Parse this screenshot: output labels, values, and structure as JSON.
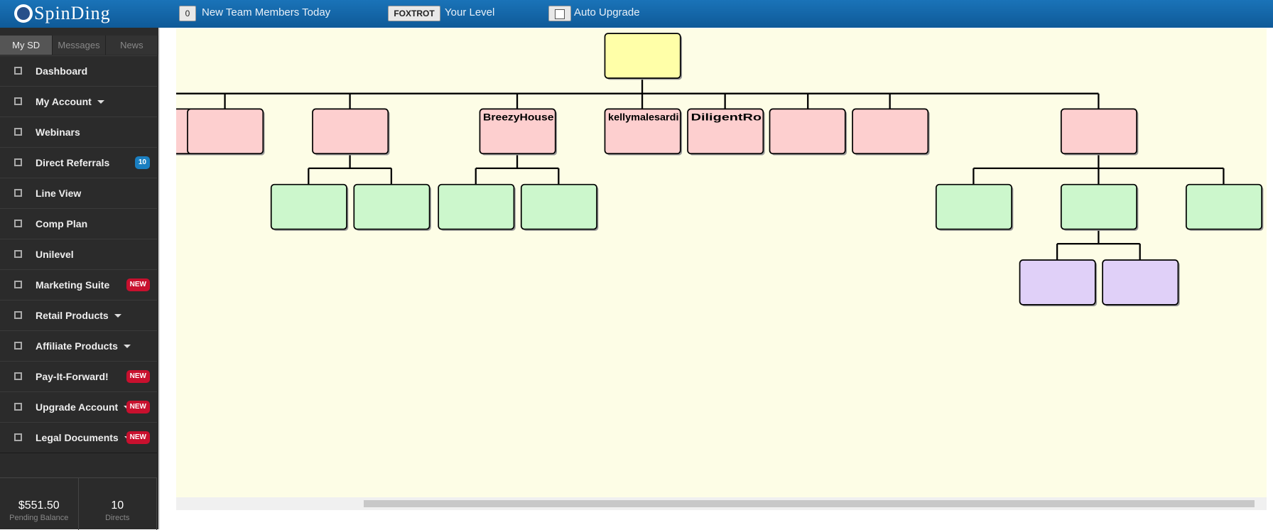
{
  "header": {
    "logo": "SpinDing",
    "new_members_count": "0",
    "new_members_label": "New Team Members Today",
    "level": "FOXTROT",
    "level_label": "Your Level",
    "auto_upgrade_label": "Auto Upgrade"
  },
  "tabs": [
    "My SD",
    "Messages",
    "News"
  ],
  "menu": [
    {
      "label": "Dashboard"
    },
    {
      "label": "My Account",
      "dropdown": true
    },
    {
      "label": "Webinars"
    },
    {
      "label": "Direct Referrals",
      "badge": "10",
      "badge_color": "#1a7fc1"
    },
    {
      "label": "Line View"
    },
    {
      "label": "Comp Plan"
    },
    {
      "label": "Unilevel"
    },
    {
      "label": "Marketing Suite",
      "badge": "NEW",
      "badge_color": "#c8102e"
    },
    {
      "label": "Retail Products",
      "dropdown": true
    },
    {
      "label": "Affiliate Products",
      "dropdown": true
    },
    {
      "label": "Pay-It-Forward!",
      "badge": "NEW",
      "badge_color": "#c8102e"
    },
    {
      "label": "Upgrade Account",
      "dropdown": true,
      "badge": "NEW",
      "badge_color": "#c8102e"
    },
    {
      "label": "Legal Documents",
      "dropdown": true,
      "badge": "NEW",
      "badge_color": "#c8102e"
    }
  ],
  "footer": {
    "balance": "$551.50",
    "balance_label": "Pending Balance",
    "directs": "10",
    "directs_label": "Directs"
  },
  "tree": {
    "labels": [
      "BreezyHouse",
      "kellymalesardi",
      "DiligentRo"
    ]
  }
}
